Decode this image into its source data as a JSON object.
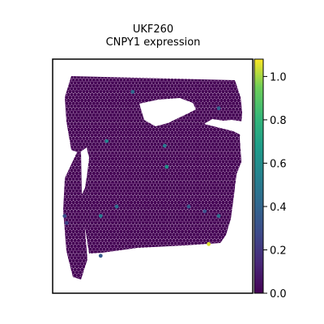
{
  "chart_data": {
    "type": "scatter",
    "title_line1": "UKF260",
    "title_line2": "CNPY1 expression",
    "xlabel": "",
    "ylabel": "",
    "colormap": "viridis",
    "color_range": [
      0.0,
      1.08
    ],
    "colorbar": {
      "ticks": [
        0.0,
        0.2,
        0.4,
        0.6,
        0.8,
        1.0
      ],
      "tick_labels": [
        "0.0",
        "0.2",
        "0.4",
        "0.6",
        "0.8",
        "1.0"
      ],
      "placement": "right"
    },
    "background_value": 0.0,
    "highlight_spots": [
      {
        "x": 0.4,
        "y": 0.86,
        "value": 0.42
      },
      {
        "x": 0.83,
        "y": 0.79,
        "value": 0.38
      },
      {
        "x": 0.27,
        "y": 0.65,
        "value": 0.55
      },
      {
        "x": 0.56,
        "y": 0.63,
        "value": 0.5
      },
      {
        "x": 0.57,
        "y": 0.54,
        "value": 0.62
      },
      {
        "x": 0.06,
        "y": 0.33,
        "value": 0.3
      },
      {
        "x": 0.32,
        "y": 0.37,
        "value": 0.45
      },
      {
        "x": 0.24,
        "y": 0.33,
        "value": 0.5
      },
      {
        "x": 0.68,
        "y": 0.37,
        "value": 0.35
      },
      {
        "x": 0.76,
        "y": 0.35,
        "value": 0.3
      },
      {
        "x": 0.83,
        "y": 0.33,
        "value": 0.45
      },
      {
        "x": 0.07,
        "y": 0.3,
        "value": 0.25
      },
      {
        "x": 0.78,
        "y": 0.21,
        "value": 1.05
      },
      {
        "x": 0.24,
        "y": 0.16,
        "value": 0.35
      }
    ]
  }
}
